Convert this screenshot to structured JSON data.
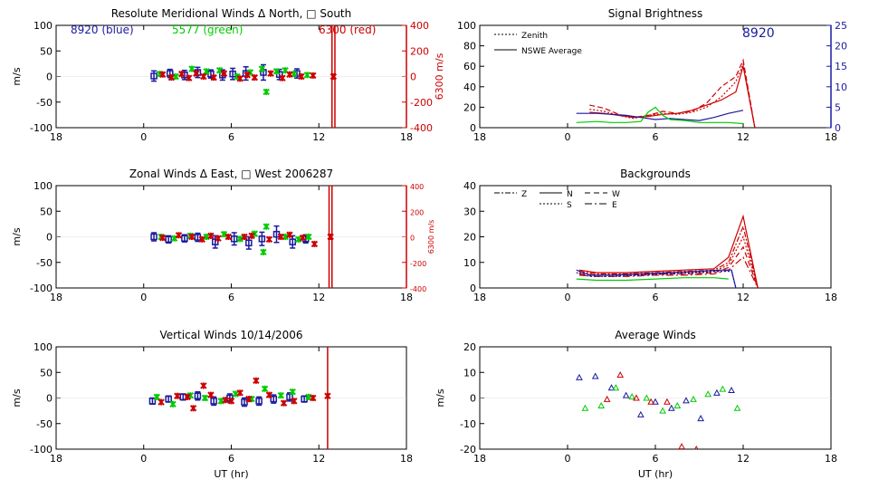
{
  "figure": {
    "xlabel": "UT (hr)",
    "xticks": [
      "18",
      "0",
      "6",
      "12",
      "18"
    ]
  },
  "chart_data": [
    {
      "id": "meridional",
      "type": "scatter",
      "title": "Resolute Meridional Winds Δ North, □ South",
      "ylabel": "m/s",
      "ylim": [
        -100,
        100
      ],
      "yticks": [
        100,
        50,
        0,
        -50,
        -100
      ],
      "xlim": [
        -6,
        18
      ],
      "right_axis": {
        "label": "6300 m/s",
        "color": "#cc0000",
        "ticks": [
          400,
          200,
          0,
          -200,
          -400
        ],
        "lim": [
          -400,
          400
        ]
      },
      "labels": [
        {
          "text": "8920 (blue)",
          "color": "#1a1aa0"
        },
        {
          "text": "5577 (green)",
          "color": "#00cc00"
        },
        {
          "text": "6300 (red)",
          "color": "#cc0000"
        }
      ],
      "vlines": [
        {
          "x": 12.9,
          "color": "#cc0000"
        },
        {
          "x": 13.1,
          "color": "#cc0000"
        }
      ],
      "series": [
        {
          "name": "8920 (blue)",
          "color": "#1a1aa0",
          "marker": "errorbar",
          "x": [
            0.7,
            1.8,
            2.8,
            3.7,
            4.6,
            5.4,
            6.1,
            7.0,
            8.2,
            9.3,
            10.5
          ],
          "y": [
            1,
            6,
            3,
            8,
            5,
            3,
            5,
            6,
            8,
            4,
            6
          ],
          "err": [
            10,
            8,
            9,
            10,
            8,
            10,
            11,
            13,
            15,
            10,
            9
          ]
        },
        {
          "name": "5577 (green)",
          "color": "#00cc00",
          "marker": "star",
          "x": [
            1.1,
            2.2,
            3.3,
            4.3,
            5.2,
            6.4,
            7.3,
            8.1,
            8.4,
            9.1,
            9.7,
            10.3,
            11.2
          ],
          "y": [
            5,
            0,
            15,
            10,
            12,
            0,
            8,
            15,
            -30,
            10,
            12,
            5,
            3
          ]
        },
        {
          "name": "6300 (red)",
          "color": "#cc0000",
          "marker": "star",
          "x": [
            1.3,
            1.9,
            2.6,
            3.1,
            3.6,
            4.1,
            4.8,
            5.5,
            6.6,
            7.1,
            7.6,
            8.7,
            9.5,
            10.0,
            10.8,
            11.6,
            13.0
          ],
          "y": [
            4,
            -2,
            5,
            -3,
            6,
            0,
            -2,
            6,
            -4,
            3,
            -2,
            6,
            -3,
            4,
            0,
            2,
            0
          ]
        }
      ]
    },
    {
      "id": "zonal",
      "type": "scatter",
      "title": "Zonal Winds Δ East, □ West 2006287",
      "ylabel": "m/s",
      "ylim": [
        -100,
        100
      ],
      "yticks": [
        100,
        50,
        0,
        -50,
        -100
      ],
      "xlim": [
        -6,
        18
      ],
      "right_axis": {
        "label": "6300 m/s",
        "color": "#cc0000",
        "ticks": [
          400,
          200,
          0,
          -200,
          -400
        ],
        "lim": [
          -400,
          400
        ]
      },
      "vlines": [
        {
          "x": 12.7,
          "color": "#cc0000"
        },
        {
          "x": 12.9,
          "color": "#cc0000"
        }
      ],
      "series": [
        {
          "name": "8920 (blue)",
          "color": "#1a1aa0",
          "marker": "errorbar",
          "x": [
            0.7,
            1.7,
            2.8,
            3.7,
            4.9,
            6.2,
            7.2,
            8.1,
            9.1,
            10.2,
            11.1
          ],
          "y": [
            0,
            -5,
            -3,
            -1,
            -10,
            -4,
            -12,
            -4,
            5,
            -10,
            -4
          ],
          "err": [
            8,
            7,
            7,
            8,
            12,
            12,
            12,
            13,
            16,
            12,
            8
          ]
        },
        {
          "name": "5577 (green)",
          "color": "#00cc00",
          "marker": "star",
          "x": [
            1.2,
            2.1,
            3.2,
            4.3,
            5.5,
            6.6,
            7.6,
            8.2,
            8.4,
            9.7,
            10.6,
            11.3
          ],
          "y": [
            0,
            -3,
            2,
            0,
            5,
            -4,
            6,
            -30,
            20,
            0,
            -5,
            0
          ]
        },
        {
          "name": "6300 (red)",
          "color": "#cc0000",
          "marker": "star",
          "x": [
            1.3,
            2.4,
            3.3,
            4.0,
            4.6,
            5.1,
            5.8,
            6.9,
            7.4,
            8.6,
            9.4,
            10.0,
            10.9,
            11.7,
            12.8
          ],
          "y": [
            -2,
            3,
            0,
            -5,
            2,
            -3,
            0,
            0,
            2,
            -5,
            0,
            4,
            -2,
            -14,
            0
          ]
        }
      ]
    },
    {
      "id": "vertical",
      "type": "scatter",
      "title": "Vertical Winds 10/14/2006",
      "ylabel": "m/s",
      "ylim": [
        -100,
        100
      ],
      "yticks": [
        100,
        50,
        0,
        -50,
        -100
      ],
      "xlim": [
        -6,
        18
      ],
      "vlines": [
        {
          "x": 12.6,
          "color": "#cc0000"
        }
      ],
      "series": [
        {
          "name": "8920 (blue)",
          "color": "#1a1aa0",
          "marker": "errorbar",
          "x": [
            0.6,
            1.7,
            2.7,
            3.7,
            4.8,
            5.9,
            6.9,
            7.9,
            8.9,
            10.0,
            11.0
          ],
          "y": [
            -6,
            -2,
            2,
            4,
            -6,
            0,
            -8,
            -6,
            -2,
            2,
            -2
          ],
          "err": [
            6,
            6,
            6,
            8,
            8,
            8,
            8,
            8,
            8,
            8,
            6
          ]
        },
        {
          "name": "5577 (green)",
          "color": "#00cc00",
          "marker": "star",
          "x": [
            0.9,
            2.0,
            3.2,
            4.2,
            5.3,
            6.3,
            7.4,
            8.3,
            9.4,
            10.2,
            11.3
          ],
          "y": [
            2,
            -12,
            5,
            0,
            -6,
            8,
            -2,
            18,
            5,
            12,
            2
          ]
        },
        {
          "name": "6300 (red)",
          "color": "#cc0000",
          "marker": "star",
          "x": [
            1.2,
            2.3,
            3.0,
            3.4,
            4.1,
            4.6,
            5.6,
            6.0,
            6.6,
            7.2,
            7.7,
            8.6,
            9.6,
            10.3,
            11.6,
            12.6
          ],
          "y": [
            -8,
            4,
            2,
            -20,
            24,
            6,
            -4,
            -6,
            10,
            -2,
            34,
            6,
            -10,
            -6,
            0,
            4
          ]
        }
      ]
    },
    {
      "id": "brightness",
      "type": "line",
      "title": "Signal Brightness",
      "ylim": [
        0,
        100
      ],
      "yticks": [
        100,
        80,
        60,
        40,
        20,
        0
      ],
      "xlim": [
        -6,
        18
      ],
      "right_axis": {
        "label": "",
        "color": "#1a1aa0",
        "ticks": [
          25,
          20,
          15,
          10,
          5,
          0
        ],
        "lim": [
          0,
          25
        ]
      },
      "labels": [
        {
          "text": "8920",
          "color": "#1a1aa0"
        }
      ],
      "legend": [
        {
          "label": "Zenith",
          "dash": "2,2"
        },
        {
          "label": "NSWE Average",
          "dash": ""
        }
      ],
      "series": [
        {
          "name": "6300 NSWE",
          "color": "#cc0000",
          "dash": "",
          "x": [
            1.5,
            2.5,
            3.5,
            4.5,
            5.5,
            6.5,
            7.5,
            8.5,
            9.5,
            10.5,
            11.5,
            12.0,
            12.8
          ],
          "y": [
            15,
            14,
            12,
            10,
            11,
            13,
            14,
            17,
            22,
            27,
            35,
            60,
            0
          ]
        },
        {
          "name": "6300 Zenith",
          "color": "#cc0000",
          "dash": "6,3",
          "x": [
            1.5,
            2.5,
            3.5,
            4.5,
            5.5,
            6.5,
            7.5,
            8.5,
            9.5,
            10.5,
            11.5,
            12.0,
            12.8
          ],
          "y": [
            22,
            19,
            13,
            10,
            12,
            16,
            14,
            16,
            24,
            40,
            50,
            66,
            0
          ]
        },
        {
          "name": "6300 mid",
          "color": "#cc0000",
          "dash": "2,2",
          "x": [
            1.5,
            2.5,
            3.5,
            4.5,
            5.5,
            6.5,
            7.5,
            8.5,
            9.5,
            10.5,
            11.5,
            12.0,
            12.8
          ],
          "y": [
            18,
            16,
            12,
            9,
            12,
            14,
            13,
            15,
            20,
            30,
            45,
            62,
            0
          ]
        },
        {
          "name": "8920 NSWE",
          "color": "#1a1aa0",
          "dash": "",
          "x": [
            0.6,
            2,
            3,
            4,
            5,
            6,
            7,
            8,
            9,
            10,
            11,
            12
          ],
          "y": [
            14,
            14,
            13,
            12,
            10,
            8,
            9,
            8,
            7,
            10,
            14,
            17
          ]
        },
        {
          "name": "5577 NSWE",
          "color": "#00cc00",
          "dash": "",
          "x": [
            0.6,
            2,
            3,
            4,
            5,
            5.5,
            6,
            6.5,
            7,
            8,
            9,
            10,
            11,
            12
          ],
          "y": [
            5,
            6,
            5,
            5,
            6,
            15,
            20,
            12,
            8,
            7,
            5,
            5,
            5,
            4
          ]
        }
      ]
    },
    {
      "id": "backgrounds",
      "type": "line",
      "title": "Backgrounds",
      "ylim": [
        0,
        40
      ],
      "yticks": [
        40,
        30,
        20,
        10,
        0
      ],
      "xlim": [
        -6,
        18
      ],
      "legend": [
        {
          "label": "Z",
          "dash": "6,2,2,2"
        },
        {
          "label": "N",
          "dash": ""
        },
        {
          "label": "W",
          "dash": "6,4"
        },
        {
          "label": "S",
          "dash": "2,2"
        },
        {
          "label": "E",
          "dash": "8,3,2,3"
        }
      ],
      "series": [
        {
          "name": "6300 N",
          "color": "#cc0000",
          "dash": "",
          "x": [
            0.8,
            2,
            4,
            6,
            8,
            10,
            11,
            12,
            13
          ],
          "y": [
            7,
            6,
            6,
            6.5,
            7,
            7.5,
            12,
            28,
            0
          ]
        },
        {
          "name": "6300 Z",
          "color": "#cc0000",
          "dash": "6,2,2,2",
          "x": [
            0.8,
            2,
            4,
            6,
            8,
            10,
            11,
            12,
            13
          ],
          "y": [
            6.5,
            5.5,
            5.5,
            6,
            6.5,
            7,
            10,
            24,
            0
          ]
        },
        {
          "name": "6300 S",
          "color": "#cc0000",
          "dash": "2,2",
          "x": [
            0.8,
            2,
            4,
            6,
            8,
            10,
            11,
            12,
            13
          ],
          "y": [
            6,
            5,
            5.2,
            5.5,
            6,
            6.5,
            9,
            20,
            0
          ]
        },
        {
          "name": "6300 W",
          "color": "#cc0000",
          "dash": "6,4",
          "x": [
            0.8,
            2,
            4,
            6,
            8,
            10,
            11,
            12,
            13
          ],
          "y": [
            5.5,
            5,
            5,
            5.5,
            5.5,
            6,
            8,
            16,
            0
          ]
        },
        {
          "name": "6300 E",
          "color": "#cc0000",
          "dash": "8,3,2,3",
          "x": [
            0.8,
            2,
            4,
            6,
            8,
            10,
            11,
            12,
            13
          ],
          "y": [
            5,
            4.5,
            4.5,
            5,
            5,
            5.5,
            7,
            12,
            0
          ]
        },
        {
          "name": "8920 N",
          "color": "#1a1aa0",
          "dash": "",
          "x": [
            0.6,
            1.5,
            3,
            5,
            7,
            9,
            10.5,
            11.2,
            11.5
          ],
          "y": [
            7,
            5,
            5,
            5.5,
            6,
            6.5,
            7,
            7,
            0
          ]
        },
        {
          "name": "8920 Z",
          "color": "#1a1aa0",
          "dash": "2,2",
          "x": [
            0.6,
            1.5,
            3,
            5,
            7,
            9,
            10.5,
            11.2,
            11.5
          ],
          "y": [
            6,
            4.5,
            4.5,
            5,
            5.5,
            6,
            6.5,
            6.5,
            0
          ]
        },
        {
          "name": "5577 N",
          "color": "#00cc00",
          "dash": "",
          "x": [
            0.6,
            2,
            4,
            6,
            8,
            10,
            11
          ],
          "y": [
            3.5,
            3,
            3,
            3.5,
            4,
            4,
            3.5
          ]
        }
      ]
    },
    {
      "id": "average",
      "type": "scatter",
      "title": "Average Winds",
      "ylabel": "m/s",
      "ylim": [
        -20,
        20
      ],
      "yticks": [
        20,
        10,
        0,
        -10,
        -20
      ],
      "xlim": [
        -6,
        18
      ],
      "series": [
        {
          "name": "8920",
          "color": "#1a1aa0",
          "marker": "triangle",
          "x": [
            0.8,
            1.9,
            3.0,
            4.0,
            5.0,
            6.0,
            7.1,
            8.1,
            9.1,
            10.2,
            11.2
          ],
          "y": [
            8,
            8.5,
            4,
            1,
            -6.5,
            -1.5,
            -4,
            -1,
            -8,
            2,
            3
          ]
        },
        {
          "name": "5577",
          "color": "#00cc00",
          "marker": "triangle",
          "x": [
            1.2,
            2.3,
            3.3,
            4.4,
            5.4,
            6.5,
            7.5,
            8.6,
            9.6,
            10.6,
            11.6
          ],
          "y": [
            -4,
            -3,
            4,
            0.5,
            0,
            -5,
            -3,
            -0.5,
            1.5,
            3.5,
            -4
          ]
        },
        {
          "name": "6300",
          "color": "#cc0000",
          "marker": "triangle",
          "x": [
            2.7,
            3.6,
            4.7,
            5.7,
            6.8,
            7.8,
            8.8
          ],
          "y": [
            -0.5,
            9,
            0,
            -1.5,
            -1.5,
            -19,
            -20
          ]
        }
      ]
    }
  ]
}
